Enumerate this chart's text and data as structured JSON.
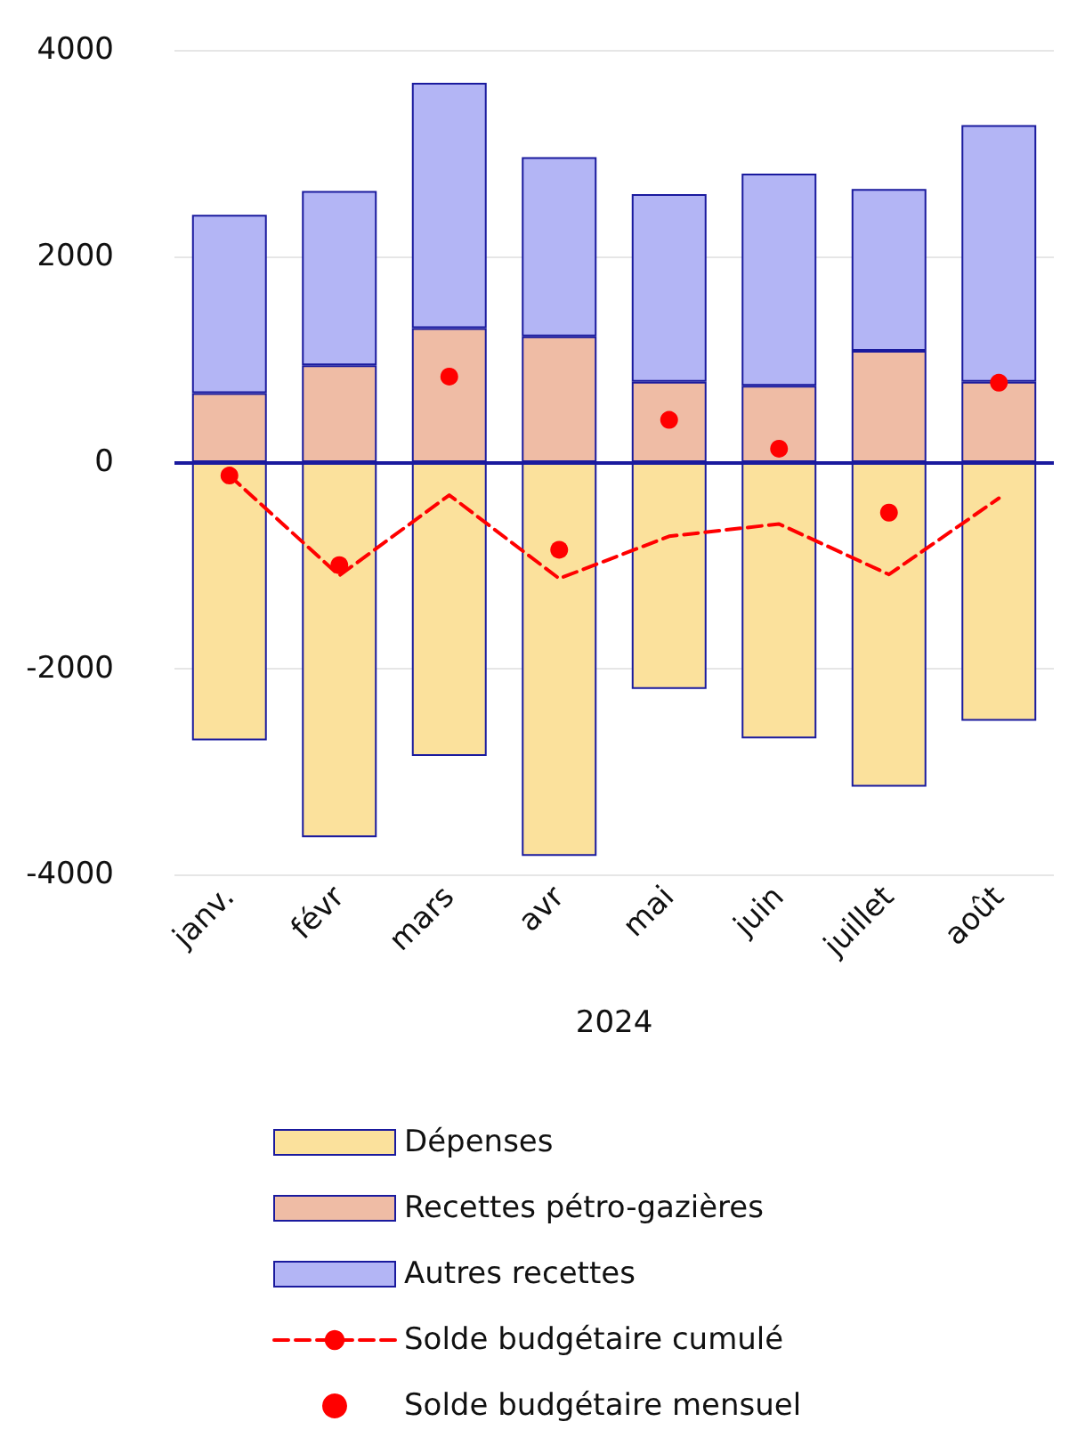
{
  "chart_data": {
    "type": "bar",
    "xlabel": "2024",
    "categories": [
      "janv.",
      "févr",
      "mars",
      "avr",
      "mai",
      "juin",
      "juillet",
      "août"
    ],
    "stacked": true,
    "series": [
      {
        "name": "Dépenses",
        "color": "#fbe19c",
        "values": [
          -2700,
          -3640,
          -2850,
          -3820,
          -2200,
          -2680,
          -3150,
          -2510
        ]
      },
      {
        "name": "Recettes pétro-gazières",
        "color": "#efbca5",
        "values": [
          670,
          940,
          1300,
          1220,
          780,
          740,
          1080,
          780
        ]
      },
      {
        "name": "Autres recettes",
        "color": "#b3b5f5",
        "values": [
          1730,
          1690,
          2380,
          1740,
          1820,
          2060,
          1570,
          2490
        ]
      },
      {
        "name": "Solde budgétaire cumulé",
        "type": "line",
        "color": "#ff0000",
        "line_style": "dashed",
        "marker": "none",
        "values": [
          -130,
          -1100,
          -320,
          -1130,
          -720,
          -600,
          -1090,
          -350
        ]
      },
      {
        "name": "Solde budgétaire mensuel",
        "type": "scatter",
        "color": "#ff0000",
        "marker": "circle",
        "values": [
          -130,
          -1000,
          830,
          -850,
          410,
          130,
          -490,
          770
        ]
      }
    ],
    "ylim": [
      -4000,
      4000
    ],
    "yticks": [
      -4000,
      -2000,
      0,
      2000,
      4000
    ],
    "ref_lines": [
      {
        "axis": "y",
        "value": 0,
        "color": "#1a1a9e"
      }
    ],
    "grid": "y",
    "legend": "bottom"
  }
}
